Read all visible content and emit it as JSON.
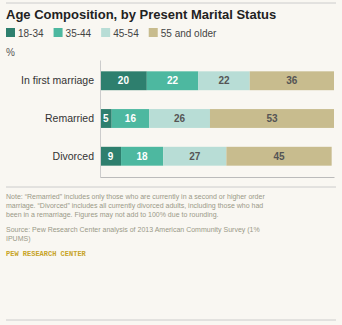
{
  "chart_data": {
    "type": "bar",
    "orientation": "horizontal",
    "stacked": true,
    "title": "Age Composition, by Present Marital Status",
    "xlabel": "%",
    "categories": [
      "In first marriage",
      "Remarried",
      "Divorced"
    ],
    "series": [
      {
        "name": "18-34",
        "color": "#2e7f6e",
        "values": [
          20,
          5,
          9
        ]
      },
      {
        "name": "35-44",
        "color": "#4db8a0",
        "values": [
          22,
          16,
          18
        ]
      },
      {
        "name": "45-54",
        "color": "#b8ddd6",
        "values": [
          22,
          26,
          27
        ]
      },
      {
        "name": "55 and older",
        "color": "#c8bc8e",
        "values": [
          36,
          53,
          45
        ]
      }
    ],
    "xlim": [
      0,
      100
    ],
    "xticks": [],
    "grid": false,
    "legend": "top",
    "data_labels": true,
    "tick_labels": "y",
    "annotations": [
      "Note: “Remarried” includes only those who are currently in a second or higher order\nmarriage. “Divorced” includes all currently divorced adults, including those who had\nbeen in a remarriage. Figures may not add to 100% due to rounding.",
      "Source: Pew Research Center analysis of 2013 American Community Survey (1%\nIPUMS)",
      "PEW RESEARCH CENTER"
    ]
  }
}
